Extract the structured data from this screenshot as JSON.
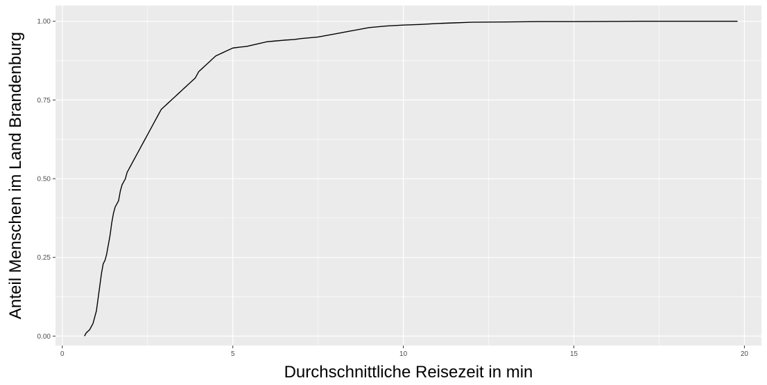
{
  "chart_data": {
    "type": "line",
    "title": "",
    "xlabel": "Durchschnittliche Reisezeit in min",
    "ylabel": "Anteil Menschen im Land Brandenburg",
    "xlim": [
      -0.2,
      20.5
    ],
    "ylim": [
      -0.03,
      1.05
    ],
    "x_ticks": [
      0,
      5,
      10,
      15,
      20
    ],
    "x_tick_labels": [
      "0",
      "5",
      "10",
      "15",
      "20"
    ],
    "y_ticks": [
      0.0,
      0.25,
      0.5,
      0.75,
      1.0
    ],
    "y_tick_labels": [
      "0.00",
      "0.25",
      "0.50",
      "0.75",
      "1.00"
    ],
    "grid": true,
    "legend": "none",
    "colors": {
      "panel": "#ebebeb",
      "grid": "#ffffff",
      "line": "#000000",
      "tick_text": "#4d4d4d"
    },
    "series": [
      {
        "x": [
          0.65,
          0.7,
          0.8,
          0.9,
          0.95,
          1.0,
          1.05,
          1.1,
          1.15,
          1.2,
          1.25,
          1.3,
          1.35,
          1.4,
          1.45,
          1.5,
          1.55,
          1.6,
          1.65,
          1.7,
          1.75,
          1.8,
          1.85,
          1.9,
          1.95,
          2.0,
          2.05,
          2.1,
          2.15,
          2.2,
          2.3,
          2.4,
          2.5,
          2.6,
          2.7,
          2.8,
          2.9,
          3.0,
          3.1,
          3.2,
          3.3,
          3.4,
          3.5,
          3.6,
          3.7,
          3.8,
          3.9,
          4.0,
          4.1,
          4.2,
          4.3,
          4.4,
          4.5,
          4.6,
          4.7,
          4.8,
          4.9,
          5.0,
          5.2,
          5.4,
          5.6,
          5.8,
          6.0,
          6.2,
          6.5,
          6.8,
          7.0,
          7.5,
          8.0,
          8.5,
          9.0,
          9.5,
          10.0,
          10.5,
          11.0,
          11.5,
          12.0,
          13.0,
          14.0,
          15.0,
          17.0,
          19.8
        ],
        "y": [
          0.0,
          0.01,
          0.02,
          0.04,
          0.06,
          0.08,
          0.12,
          0.16,
          0.2,
          0.23,
          0.24,
          0.26,
          0.29,
          0.32,
          0.36,
          0.39,
          0.41,
          0.42,
          0.43,
          0.46,
          0.48,
          0.49,
          0.5,
          0.52,
          0.53,
          0.54,
          0.55,
          0.56,
          0.57,
          0.58,
          0.6,
          0.62,
          0.64,
          0.66,
          0.68,
          0.7,
          0.72,
          0.73,
          0.74,
          0.75,
          0.76,
          0.77,
          0.78,
          0.79,
          0.8,
          0.81,
          0.82,
          0.84,
          0.85,
          0.86,
          0.87,
          0.88,
          0.89,
          0.895,
          0.9,
          0.905,
          0.91,
          0.915,
          0.918,
          0.92,
          0.925,
          0.93,
          0.935,
          0.937,
          0.94,
          0.942,
          0.945,
          0.95,
          0.96,
          0.97,
          0.98,
          0.985,
          0.988,
          0.99,
          0.993,
          0.995,
          0.997,
          0.998,
          0.999,
          0.999,
          1.0,
          1.0
        ]
      }
    ]
  }
}
